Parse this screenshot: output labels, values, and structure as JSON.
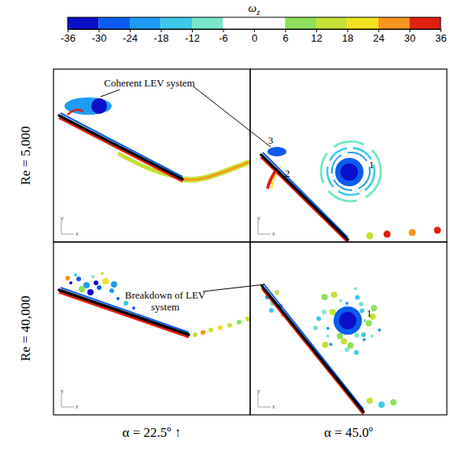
{
  "chart_data": {
    "type": "contour",
    "colorbar": {
      "title": "ω",
      "title_subscript": "z",
      "range": [
        -36,
        36
      ],
      "ticks": [
        -36,
        -30,
        -24,
        -18,
        -12,
        -6,
        0,
        6,
        12,
        18,
        24,
        30,
        36
      ],
      "colors": [
        "#0a10c8",
        "#0a5cf0",
        "#1e9cf5",
        "#3cc8e8",
        "#78e6c8",
        "#ffffff",
        "#ffffff",
        "#8ee05a",
        "#c6e034",
        "#f2e020",
        "#f8941a",
        "#e0200e"
      ]
    },
    "rows": [
      "Re = 5,000",
      "Re = 40,000"
    ],
    "columns": [
      "α = 22.5º ↑",
      "α = 45.0º"
    ],
    "labels": {
      "coherent": "Coherent LEV system",
      "breakdown": "Breakdown of LEV system"
    },
    "vortex_ids": [
      "1",
      "2",
      "3"
    ],
    "triad": {
      "x": "x",
      "y": "y"
    }
  }
}
